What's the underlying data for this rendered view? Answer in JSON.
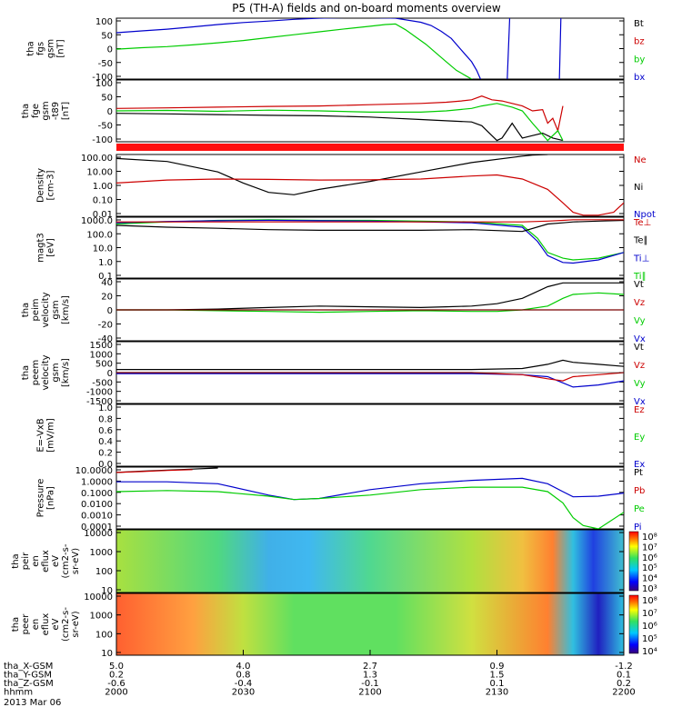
{
  "title": "P5 (TH-A) fields and on-board moments overview",
  "colors": {
    "black": "#000000",
    "red": "#cc0000",
    "green": "#00cc00",
    "blue": "#0000cc",
    "bar": "#ff1010"
  },
  "chart_data": [
    {
      "type": "line",
      "id": "fgs",
      "ylabel": [
        "tha",
        "fgs",
        "gsm",
        "[nT]"
      ],
      "yticks": [
        "100",
        "50",
        "0",
        "-50",
        "-100"
      ],
      "ylim": [
        -100,
        110
      ],
      "legend": [
        {
          "name": "Bt",
          "color": "black"
        },
        {
          "name": "bz",
          "color": "red"
        },
        {
          "name": "by",
          "color": "green"
        },
        {
          "name": "bx",
          "color": "blue"
        }
      ],
      "series": [
        {
          "name": "bx",
          "color": "blue",
          "x": [
            0,
            5,
            10,
            15,
            20,
            25,
            30,
            35,
            40,
            45,
            50,
            55,
            60,
            62,
            64,
            66,
            68,
            70,
            71,
            72,
            75,
            76,
            77,
            77.5,
            78,
            78.5,
            80,
            85,
            87,
            87.3,
            87.6,
            88,
            100
          ],
          "y": [
            60,
            66,
            72,
            80,
            88,
            95,
            100,
            106,
            110,
            112,
            112,
            110,
            96,
            85,
            65,
            40,
            0,
            -40,
            -70,
            -110,
            null,
            null,
            -110,
            110,
            null,
            null,
            null,
            null,
            null,
            -110,
            110,
            null,
            null
          ]
        },
        {
          "name": "by",
          "color": "green",
          "x": [
            0,
            5,
            10,
            15,
            20,
            25,
            30,
            35,
            40,
            45,
            50,
            53,
            55,
            57,
            59,
            61,
            63,
            65,
            67,
            69,
            71
          ],
          "y": [
            3,
            8,
            12,
            18,
            25,
            33,
            43,
            53,
            63,
            73,
            82,
            88,
            90,
            70,
            45,
            20,
            -10,
            -40,
            -70,
            -90,
            -110
          ]
        }
      ]
    },
    {
      "type": "line",
      "id": "fge",
      "ylabel": [
        "tha",
        "fge",
        "gsm",
        "-t89",
        "[nT]"
      ],
      "yticks": [
        "100",
        "50",
        "0",
        "-50",
        "-100"
      ],
      "ylim": [
        -125,
        125
      ],
      "legend": [],
      "series": [
        {
          "name": "red",
          "color": "red",
          "x": [
            0,
            10,
            20,
            30,
            40,
            50,
            60,
            65,
            68,
            70,
            72,
            74,
            76,
            78,
            80,
            82,
            84,
            85,
            86,
            87,
            88
          ],
          "y": [
            10,
            12,
            15,
            18,
            20,
            25,
            30,
            35,
            40,
            45,
            60,
            45,
            40,
            30,
            20,
            0,
            5,
            -50,
            -30,
            -80,
            20
          ]
        },
        {
          "name": "black",
          "color": "black",
          "x": [
            0,
            10,
            20,
            30,
            40,
            50,
            55,
            60,
            65,
            70,
            72,
            74,
            75,
            76,
            78,
            79,
            80,
            82,
            84,
            86,
            88
          ],
          "y": [
            -10,
            -12,
            -15,
            -18,
            -20,
            -25,
            -30,
            -35,
            -40,
            -45,
            -60,
            -100,
            -120,
            -110,
            -50,
            -80,
            -110,
            -100,
            -90,
            -110,
            -120
          ]
        },
        {
          "name": "green",
          "color": "green",
          "x": [
            0,
            10,
            20,
            30,
            40,
            50,
            60,
            65,
            70,
            72,
            75,
            78,
            80,
            82,
            85,
            87,
            88
          ],
          "y": [
            0,
            2,
            -2,
            3,
            0,
            -5,
            -5,
            0,
            10,
            20,
            30,
            15,
            0,
            -50,
            -120,
            -80,
            -120
          ]
        }
      ]
    },
    {
      "type": "line",
      "id": "density",
      "log": true,
      "ylabel": [
        "Density",
        "[cm-3]"
      ],
      "yticks": [
        "100.00",
        "10.00",
        "1.00",
        "0.10",
        "0.01"
      ],
      "ylim": [
        0.005,
        200
      ],
      "legend": [
        {
          "name": "Ne",
          "color": "red"
        },
        {
          "name": "Ni",
          "color": "black"
        },
        {
          "name": "Npot",
          "color": "blue"
        }
      ],
      "series": [
        {
          "name": "Ni",
          "color": "black",
          "x": [
            0,
            10,
            20,
            25,
            30,
            35,
            40,
            50,
            60,
            70,
            80,
            82,
            85
          ],
          "y": [
            100,
            60,
            10,
            1.5,
            0.3,
            0.2,
            0.5,
            2,
            10,
            50,
            150,
            180,
            200
          ]
        },
        {
          "name": "Ne",
          "color": "red",
          "x": [
            0,
            10,
            20,
            30,
            40,
            50,
            60,
            70,
            75,
            80,
            85,
            88,
            90,
            92,
            95,
            98,
            100
          ],
          "y": [
            1.5,
            2.5,
            3,
            2.8,
            2.5,
            2.6,
            3,
            5,
            6,
            3,
            0.5,
            0.05,
            0.01,
            0.006,
            0.006,
            0.01,
            0.05
          ]
        }
      ]
    },
    {
      "type": "line",
      "id": "temp",
      "log": true,
      "ylabel": [
        "magt3",
        "[eV]"
      ],
      "yticks": [
        "1000.0",
        "100.0",
        "10.0",
        "1.0",
        "0.1"
      ],
      "ylim": [
        0.08,
        1500
      ],
      "legend": [
        {
          "name": "Te⊥",
          "color": "red"
        },
        {
          "name": "Te∥",
          "color": "black"
        },
        {
          "name": "Ti⊥",
          "color": "blue"
        },
        {
          "name": "Ti∥",
          "color": "green"
        }
      ],
      "series": [
        {
          "name": "Ti∥",
          "color": "green",
          "x": [
            0,
            10,
            20,
            30,
            40,
            50,
            60,
            70,
            80,
            83,
            85,
            88,
            90,
            95,
            100
          ],
          "y": [
            500,
            700,
            900,
            1000,
            900,
            900,
            800,
            700,
            400,
            50,
            5,
            2,
            1.5,
            2,
            5
          ]
        },
        {
          "name": "Ti⊥",
          "color": "blue",
          "x": [
            0,
            10,
            20,
            30,
            40,
            50,
            60,
            70,
            80,
            83,
            85,
            88,
            90,
            95,
            100
          ],
          "y": [
            600,
            750,
            850,
            900,
            850,
            800,
            700,
            600,
            300,
            30,
            3,
            1,
            0.9,
            1.5,
            5
          ]
        },
        {
          "name": "Te∥",
          "color": "black",
          "x": [
            0,
            10,
            20,
            30,
            40,
            50,
            60,
            70,
            80,
            85,
            88,
            90,
            95,
            100
          ],
          "y": [
            400,
            300,
            250,
            200,
            180,
            180,
            180,
            200,
            150,
            500,
            600,
            700,
            800,
            900
          ]
        },
        {
          "name": "Te⊥",
          "color": "red",
          "x": [
            0,
            10,
            20,
            30,
            40,
            50,
            60,
            70,
            80,
            85,
            88,
            90,
            95,
            100
          ],
          "y": [
            700,
            700,
            700,
            700,
            700,
            700,
            700,
            700,
            700,
            800,
            900,
            1000,
            1000,
            1000
          ]
        }
      ]
    },
    {
      "type": "line",
      "id": "peim",
      "ylabel": [
        "tha",
        "peim",
        "velocity",
        "gsm",
        "[km/s]"
      ],
      "yticks": [
        "40",
        "20",
        "0",
        "-20",
        "-40"
      ],
      "ylim": [
        -40,
        40
      ],
      "legend": [
        {
          "name": "Vt",
          "color": "black"
        },
        {
          "name": "Vz",
          "color": "red"
        },
        {
          "name": "Vy",
          "color": "green"
        },
        {
          "name": "Vx",
          "color": "blue"
        }
      ],
      "series": [
        {
          "name": "Vt",
          "color": "black",
          "x": [
            0,
            10,
            20,
            30,
            40,
            50,
            60,
            65,
            70,
            75,
            80,
            85,
            88,
            90,
            95,
            100
          ],
          "y": [
            0,
            0,
            1,
            3,
            5,
            4,
            3,
            4,
            5,
            8,
            15,
            30,
            35,
            35,
            35,
            35
          ]
        },
        {
          "name": "Vy",
          "color": "green",
          "x": [
            0,
            10,
            20,
            30,
            40,
            50,
            60,
            70,
            75,
            80,
            85,
            88,
            90,
            95,
            100
          ],
          "y": [
            0,
            0,
            -1,
            -2,
            -3,
            -2,
            -1,
            -2,
            -2,
            0,
            5,
            15,
            20,
            22,
            20
          ]
        },
        {
          "name": "Vz",
          "color": "red",
          "x": [
            0,
            10,
            20,
            30,
            40,
            50,
            60,
            70,
            80,
            85,
            88,
            90,
            95,
            100
          ],
          "y": [
            0,
            0,
            0,
            0,
            0,
            0,
            0,
            0,
            0,
            0,
            0,
            0,
            0,
            0
          ]
        }
      ]
    },
    {
      "type": "line",
      "id": "peem",
      "ylabel": [
        "tha",
        "peem",
        "velocity",
        "gsm",
        "[km/s]"
      ],
      "yticks": [
        "1500",
        "1000",
        "500",
        "0",
        "-500",
        "-1000",
        "-1500"
      ],
      "ylim": [
        -1500,
        1500
      ],
      "legend": [
        {
          "name": "Vt",
          "color": "black"
        },
        {
          "name": "Vz",
          "color": "red"
        },
        {
          "name": "Vy",
          "color": "green"
        },
        {
          "name": "Vx",
          "color": "blue"
        }
      ],
      "series": [
        {
          "name": "Vt",
          "color": "black",
          "x": [
            0,
            20,
            40,
            60,
            70,
            80,
            85,
            88,
            90,
            95,
            100
          ],
          "y": [
            150,
            150,
            150,
            150,
            150,
            200,
            400,
            600,
            500,
            400,
            300
          ]
        },
        {
          "name": "Vx",
          "color": "blue",
          "x": [
            0,
            20,
            40,
            60,
            70,
            80,
            85,
            88,
            90,
            95,
            100
          ],
          "y": [
            -50,
            -50,
            -50,
            -50,
            -50,
            -100,
            -200,
            -500,
            -700,
            -600,
            -400
          ]
        },
        {
          "name": "Vz",
          "color": "red",
          "x": [
            0,
            20,
            40,
            60,
            70,
            80,
            85,
            88,
            90,
            95,
            100
          ],
          "y": [
            0,
            0,
            0,
            0,
            0,
            -100,
            -300,
            -400,
            -200,
            -100,
            0
          ]
        }
      ]
    },
    {
      "type": "line",
      "id": "efield",
      "ylabel": [
        "E=-VxB",
        "[mV/m]"
      ],
      "yticks": [
        "1.0",
        "0.8",
        "0.6",
        "0.4",
        "0.2",
        "0.0"
      ],
      "ylim": [
        0,
        1
      ],
      "legend": [
        {
          "name": "Ez",
          "color": "red"
        },
        {
          "name": "Ey",
          "color": "green"
        },
        {
          "name": "Ex",
          "color": "blue"
        }
      ],
      "series": []
    },
    {
      "type": "line",
      "id": "pressure",
      "log": true,
      "ylabel": [
        "Pressure",
        "[nPa]"
      ],
      "yticks": [
        "10.0000",
        "1.0000",
        "0.1000",
        "0.0100",
        "0.0010",
        "0.0001"
      ],
      "ylim": [
        0.0001,
        30
      ],
      "legend": [
        {
          "name": "Pt",
          "color": "black"
        },
        {
          "name": "Pb",
          "color": "red"
        },
        {
          "name": "Pe",
          "color": "green"
        },
        {
          "name": "Pi",
          "color": "blue"
        }
      ],
      "series": [
        {
          "name": "Pt",
          "color": "black",
          "x": [
            0,
            5,
            10,
            15,
            20
          ],
          "y": [
            10,
            13,
            16,
            20,
            25
          ]
        },
        {
          "name": "Pb",
          "color": "red",
          "x": [
            0,
            5,
            10,
            15
          ],
          "y": [
            10,
            12,
            15,
            18
          ]
        },
        {
          "name": "Pi",
          "color": "blue",
          "x": [
            0,
            10,
            20,
            30,
            35,
            40,
            50,
            60,
            70,
            80,
            85,
            88,
            90,
            95,
            100
          ],
          "y": [
            1.5,
            1.5,
            1,
            0.1,
            0.04,
            0.05,
            0.3,
            1,
            2,
            3,
            1,
            0.2,
            0.07,
            0.08,
            0.15
          ]
        },
        {
          "name": "Pe",
          "color": "green",
          "x": [
            0,
            10,
            20,
            30,
            35,
            40,
            50,
            60,
            70,
            80,
            85,
            88,
            90,
            92,
            95,
            100
          ],
          "y": [
            0.2,
            0.25,
            0.2,
            0.08,
            0.04,
            0.05,
            0.1,
            0.3,
            0.5,
            0.5,
            0.2,
            0.02,
            0.001,
            0.0002,
            0.0001,
            0.003
          ]
        }
      ]
    },
    {
      "type": "heatmap",
      "id": "peir",
      "ylabel": [
        "tha",
        "peir",
        "en",
        "eflux",
        "eV",
        "(cm2-s-",
        "sr-eV)"
      ],
      "yticks": [
        "10000",
        "1000",
        "100",
        "10"
      ],
      "colorbar_ticks": [
        "10⁸",
        "10⁷",
        "10⁶",
        "10⁵",
        "10⁴",
        "10³"
      ]
    },
    {
      "type": "heatmap",
      "id": "peer",
      "ylabel": [
        "tha",
        "peer",
        "en",
        "eflux",
        "eV",
        "(cm2-s-",
        "sr-eV)"
      ],
      "yticks": [
        "10000",
        "1000",
        "100",
        "10"
      ],
      "colorbar_ticks": [
        "10⁸",
        "10⁷",
        "10⁶",
        "10⁵",
        "10⁴"
      ]
    }
  ],
  "xaxis": {
    "rows": [
      {
        "label": "tha_X-GSM",
        "values": [
          "5.0",
          "4.0",
          "2.7",
          "0.9",
          "-1.2"
        ]
      },
      {
        "label": "tha_Y-GSM",
        "values": [
          "0.2",
          "0.8",
          "1.3",
          "1.5",
          "0.1"
        ]
      },
      {
        "label": "tha_Z-GSM",
        "values": [
          "-0.6",
          "-0.4",
          "-0.1",
          "0.1",
          "0.2"
        ]
      },
      {
        "label": "hhmm",
        "values": [
          "2000",
          "2030",
          "2100",
          "2130",
          "2200"
        ]
      }
    ],
    "date": "2013 Mar 06"
  }
}
